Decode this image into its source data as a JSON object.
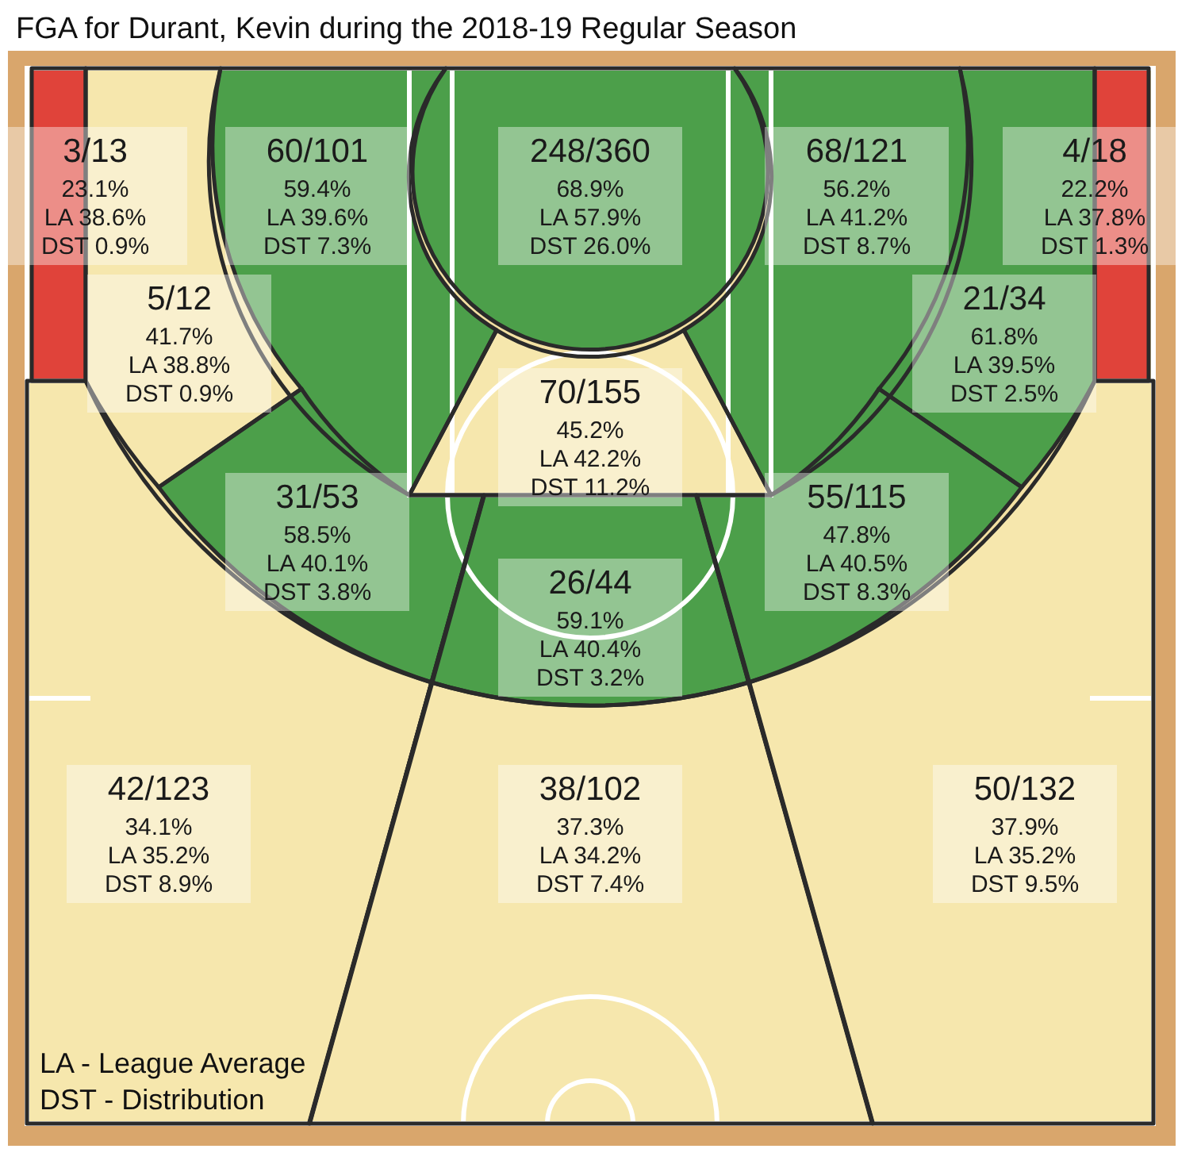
{
  "chart_data": {
    "type": "other",
    "title": "FGA for Durant, Kevin during the 2018-19 Regular Season",
    "categories": [
      null,
      null,
      null,
      null,
      null,
      null,
      null,
      null,
      null,
      null,
      null,
      null,
      null,
      null
    ],
    "colors": [
      "#e0433a",
      "#4c9f4a",
      "#4c9f4a",
      "#4c9f4a",
      "#e0433a",
      "#f6e7ad",
      "#4c9f4a",
      "#f6e7ad",
      "#4c9f4a",
      "#4c9f4a",
      "#4c9f4a",
      "#f6e7ad",
      "#f6e7ad",
      "#f6e7ad"
    ],
    "values": [
      23.1,
      59.4,
      68.9,
      56.2,
      22.2,
      41.7,
      61.8,
      45.2,
      58.5,
      47.8,
      59.1,
      34.1,
      37.3,
      37.9
    ],
    "value_labels": [
      "23.1%",
      "59.4%",
      "68.9%",
      "56.2%",
      "22.2%",
      "41.7%",
      "61.8%",
      "45.2%",
      "58.5%",
      "47.8%",
      "59.1%",
      "34.1%",
      "37.3%",
      "37.9%"
    ],
    "annotations": [
      "3/13",
      "LA 38.6%",
      "DST 0.9%",
      "60/101",
      "LA 39.6%",
      "DST 7.3%",
      "248/360",
      "LA 57.9%",
      "DST 26.0%",
      "68/121",
      "LA 41.2%",
      "DST 8.7%",
      "4/18",
      "LA 37.8%",
      "DST 1.3%",
      "5/12",
      "LA 38.8%",
      "DST 0.9%",
      "21/34",
      "LA 39.5%",
      "DST 2.5%",
      "70/155",
      "LA 42.2%",
      "DST 11.2%",
      "31/53",
      "LA 40.1%",
      "DST 3.8%",
      "55/115",
      "LA 40.5%",
      "DST 8.3%",
      "26/44",
      "LA 40.4%",
      "DST 3.2%",
      "42/123",
      "LA 35.2%",
      "DST 8.9%",
      "38/102",
      "LA 34.2%",
      "DST 7.4%",
      "50/132",
      "LA 35.2%",
      "DST 9.5%",
      "LA - League Average",
      "DST - Distribution"
    ]
  }
}
